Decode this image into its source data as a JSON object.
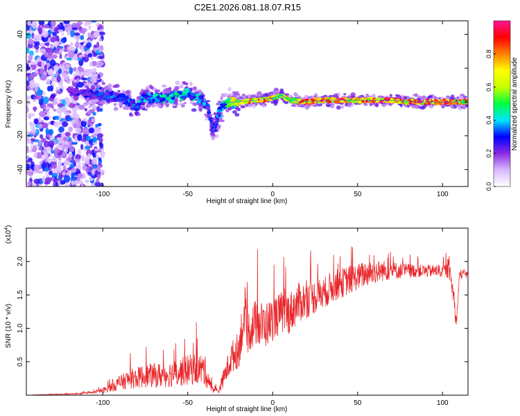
{
  "figure": {
    "title": "C2E1.2026.081.18.07.R15"
  },
  "chart_data": [
    {
      "type": "heatmap",
      "title": "C2E1.2026.081.18.07.R15",
      "xlabel": "Height of straight line (km)",
      "ylabel": "Frequency (Hz)",
      "xlim": [
        -145,
        115
      ],
      "ylim": [
        -50,
        48
      ],
      "xticks": [
        -100,
        -50,
        0,
        50,
        100
      ],
      "yticks": [
        -40,
        -20,
        0,
        20,
        40
      ],
      "colorbar": {
        "label": "Normalized spectral amplitude",
        "range": [
          0,
          1
        ],
        "ticks": [
          0.0,
          0.2,
          0.4,
          0.6,
          0.8
        ],
        "tick_labels": [
          "0.0",
          "0.2",
          "0.4",
          "0.6",
          "0.8"
        ],
        "colormap": [
          "#ffffff",
          "#d9b8ff",
          "#8a2be2",
          "#0000ff",
          "#00e5ff",
          "#00ff40",
          "#c8ff00",
          "#ffff00",
          "#ff8000",
          "#ff0000",
          "#ff1493"
        ]
      },
      "ridge": {
        "x": [
          -125,
          -115,
          -105,
          -95,
          -88,
          -80,
          -75,
          -70,
          -60,
          -50,
          -42,
          -38,
          -35,
          -30,
          -25,
          -20,
          -10,
          0,
          5,
          10,
          20,
          30,
          40,
          50,
          60,
          70,
          80,
          90,
          100,
          110,
          115
        ],
        "y": [
          8,
          6,
          4,
          3,
          2,
          -3,
          3,
          2,
          3,
          5,
          2,
          -4,
          -18,
          -2,
          0,
          0,
          1,
          2,
          4,
          1,
          0,
          1,
          1,
          1,
          1,
          1,
          0,
          0,
          0,
          0,
          0
        ],
        "amplitude": [
          0.2,
          0.25,
          0.3,
          0.35,
          0.35,
          0.4,
          0.4,
          0.42,
          0.45,
          0.45,
          0.4,
          0.35,
          0.3,
          0.45,
          0.6,
          0.8,
          0.85,
          0.8,
          0.75,
          0.85,
          0.9,
          0.9,
          0.9,
          0.9,
          0.95,
          0.95,
          0.95,
          0.95,
          0.95,
          0.9,
          0.9
        ]
      },
      "noise_region_x": [
        -145,
        -100
      ]
    },
    {
      "type": "line",
      "xlabel": "Height of straight line (km)",
      "ylabel": "SNR (10 * v/v)",
      "y_multiplier": "(x10^4)",
      "y_multiplier_base": "(x10",
      "y_multiplier_exp": "4",
      "y_multiplier_close": ")",
      "xlim": [
        -145,
        115
      ],
      "ylim": [
        0,
        2.5
      ],
      "xticks": [
        -100,
        -50,
        0,
        50,
        100
      ],
      "yticks": [
        0.5,
        1.0,
        1.5,
        2.0
      ],
      "ytick_labels": [
        "0.5",
        "1.0",
        "1.5",
        "2.0"
      ],
      "series": [
        {
          "name": "SNR",
          "color": "#e8262a",
          "x": [
            -145,
            -130,
            -115,
            -105,
            -98,
            -92,
            -85,
            -75,
            -65,
            -55,
            -45,
            -40,
            -36,
            -32,
            -28,
            -24,
            -20,
            -18,
            -15,
            -10,
            -5,
            0,
            5,
            10,
            15,
            20,
            25,
            30,
            35,
            40,
            45,
            50,
            55,
            60,
            65,
            70,
            75,
            80,
            85,
            90,
            95,
            100,
            104,
            107,
            108,
            110,
            115
          ],
          "y": [
            0.0,
            0.01,
            0.02,
            0.04,
            0.08,
            0.15,
            0.22,
            0.27,
            0.28,
            0.32,
            0.38,
            0.35,
            0.1,
            0.05,
            0.3,
            0.55,
            0.65,
            1.0,
            0.9,
            1.05,
            1.0,
            1.1,
            1.2,
            1.2,
            1.35,
            1.4,
            1.45,
            1.5,
            1.6,
            1.65,
            1.7,
            1.75,
            1.8,
            1.82,
            1.85,
            1.85,
            1.85,
            1.85,
            1.85,
            1.85,
            1.85,
            1.85,
            1.85,
            1.4,
            1.0,
            1.8,
            1.8
          ],
          "noise_amplitude": [
            0.0,
            0.01,
            0.01,
            0.02,
            0.06,
            0.12,
            0.18,
            0.22,
            0.24,
            0.27,
            0.3,
            0.3,
            0.08,
            0.05,
            0.2,
            0.3,
            0.35,
            0.45,
            0.4,
            0.45,
            0.45,
            0.4,
            0.4,
            0.4,
            0.38,
            0.35,
            0.32,
            0.3,
            0.3,
            0.28,
            0.28,
            0.25,
            0.25,
            0.22,
            0.2,
            0.18,
            0.15,
            0.14,
            0.12,
            0.12,
            0.12,
            0.12,
            0.15,
            0.2,
            0.1,
            0.1,
            0.08
          ]
        }
      ]
    }
  ]
}
